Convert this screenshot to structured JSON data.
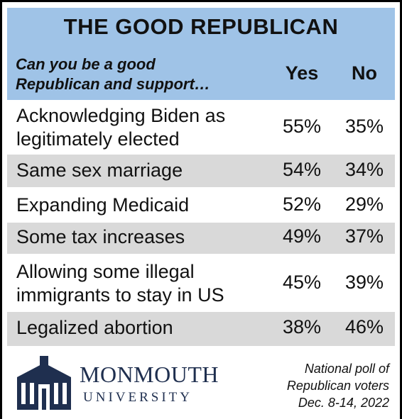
{
  "chart_data": {
    "type": "table",
    "title": "THE GOOD REPUBLICAN",
    "question": [
      "Can you be a good",
      "Republican and support…"
    ],
    "columns": [
      "Yes",
      "No"
    ],
    "rows": [
      {
        "label": [
          "Acknowledging Biden as",
          "legitimately elected"
        ],
        "yes": "55%",
        "no": "35%",
        "yes_value": 55,
        "no_value": 35
      },
      {
        "label": [
          "Same sex marriage"
        ],
        "yes": "54%",
        "no": "34%",
        "yes_value": 54,
        "no_value": 34
      },
      {
        "label": [
          "Expanding Medicaid"
        ],
        "yes": "52%",
        "no": "29%",
        "yes_value": 52,
        "no_value": 29
      },
      {
        "label": [
          "Some tax increases"
        ],
        "yes": "49%",
        "no": "37%",
        "yes_value": 49,
        "no_value": 37
      },
      {
        "label": [
          "Allowing some illegal",
          "immigrants to stay in US"
        ],
        "yes": "45%",
        "no": "39%",
        "yes_value": 45,
        "no_value": 39
      },
      {
        "label": [
          "Legalized abortion"
        ],
        "yes": "38%",
        "no": "46%",
        "yes_value": 38,
        "no_value": 46
      }
    ],
    "note": [
      "National poll of",
      "Republican voters",
      "Dec. 8-14, 2022"
    ]
  },
  "logo": {
    "line1": "MONMOUTH",
    "line2": "UNIVERSITY"
  },
  "colors": {
    "header_band": "#9fc3e7",
    "row_shade": "#d9d9d9",
    "logo": "#1f2f4f"
  }
}
